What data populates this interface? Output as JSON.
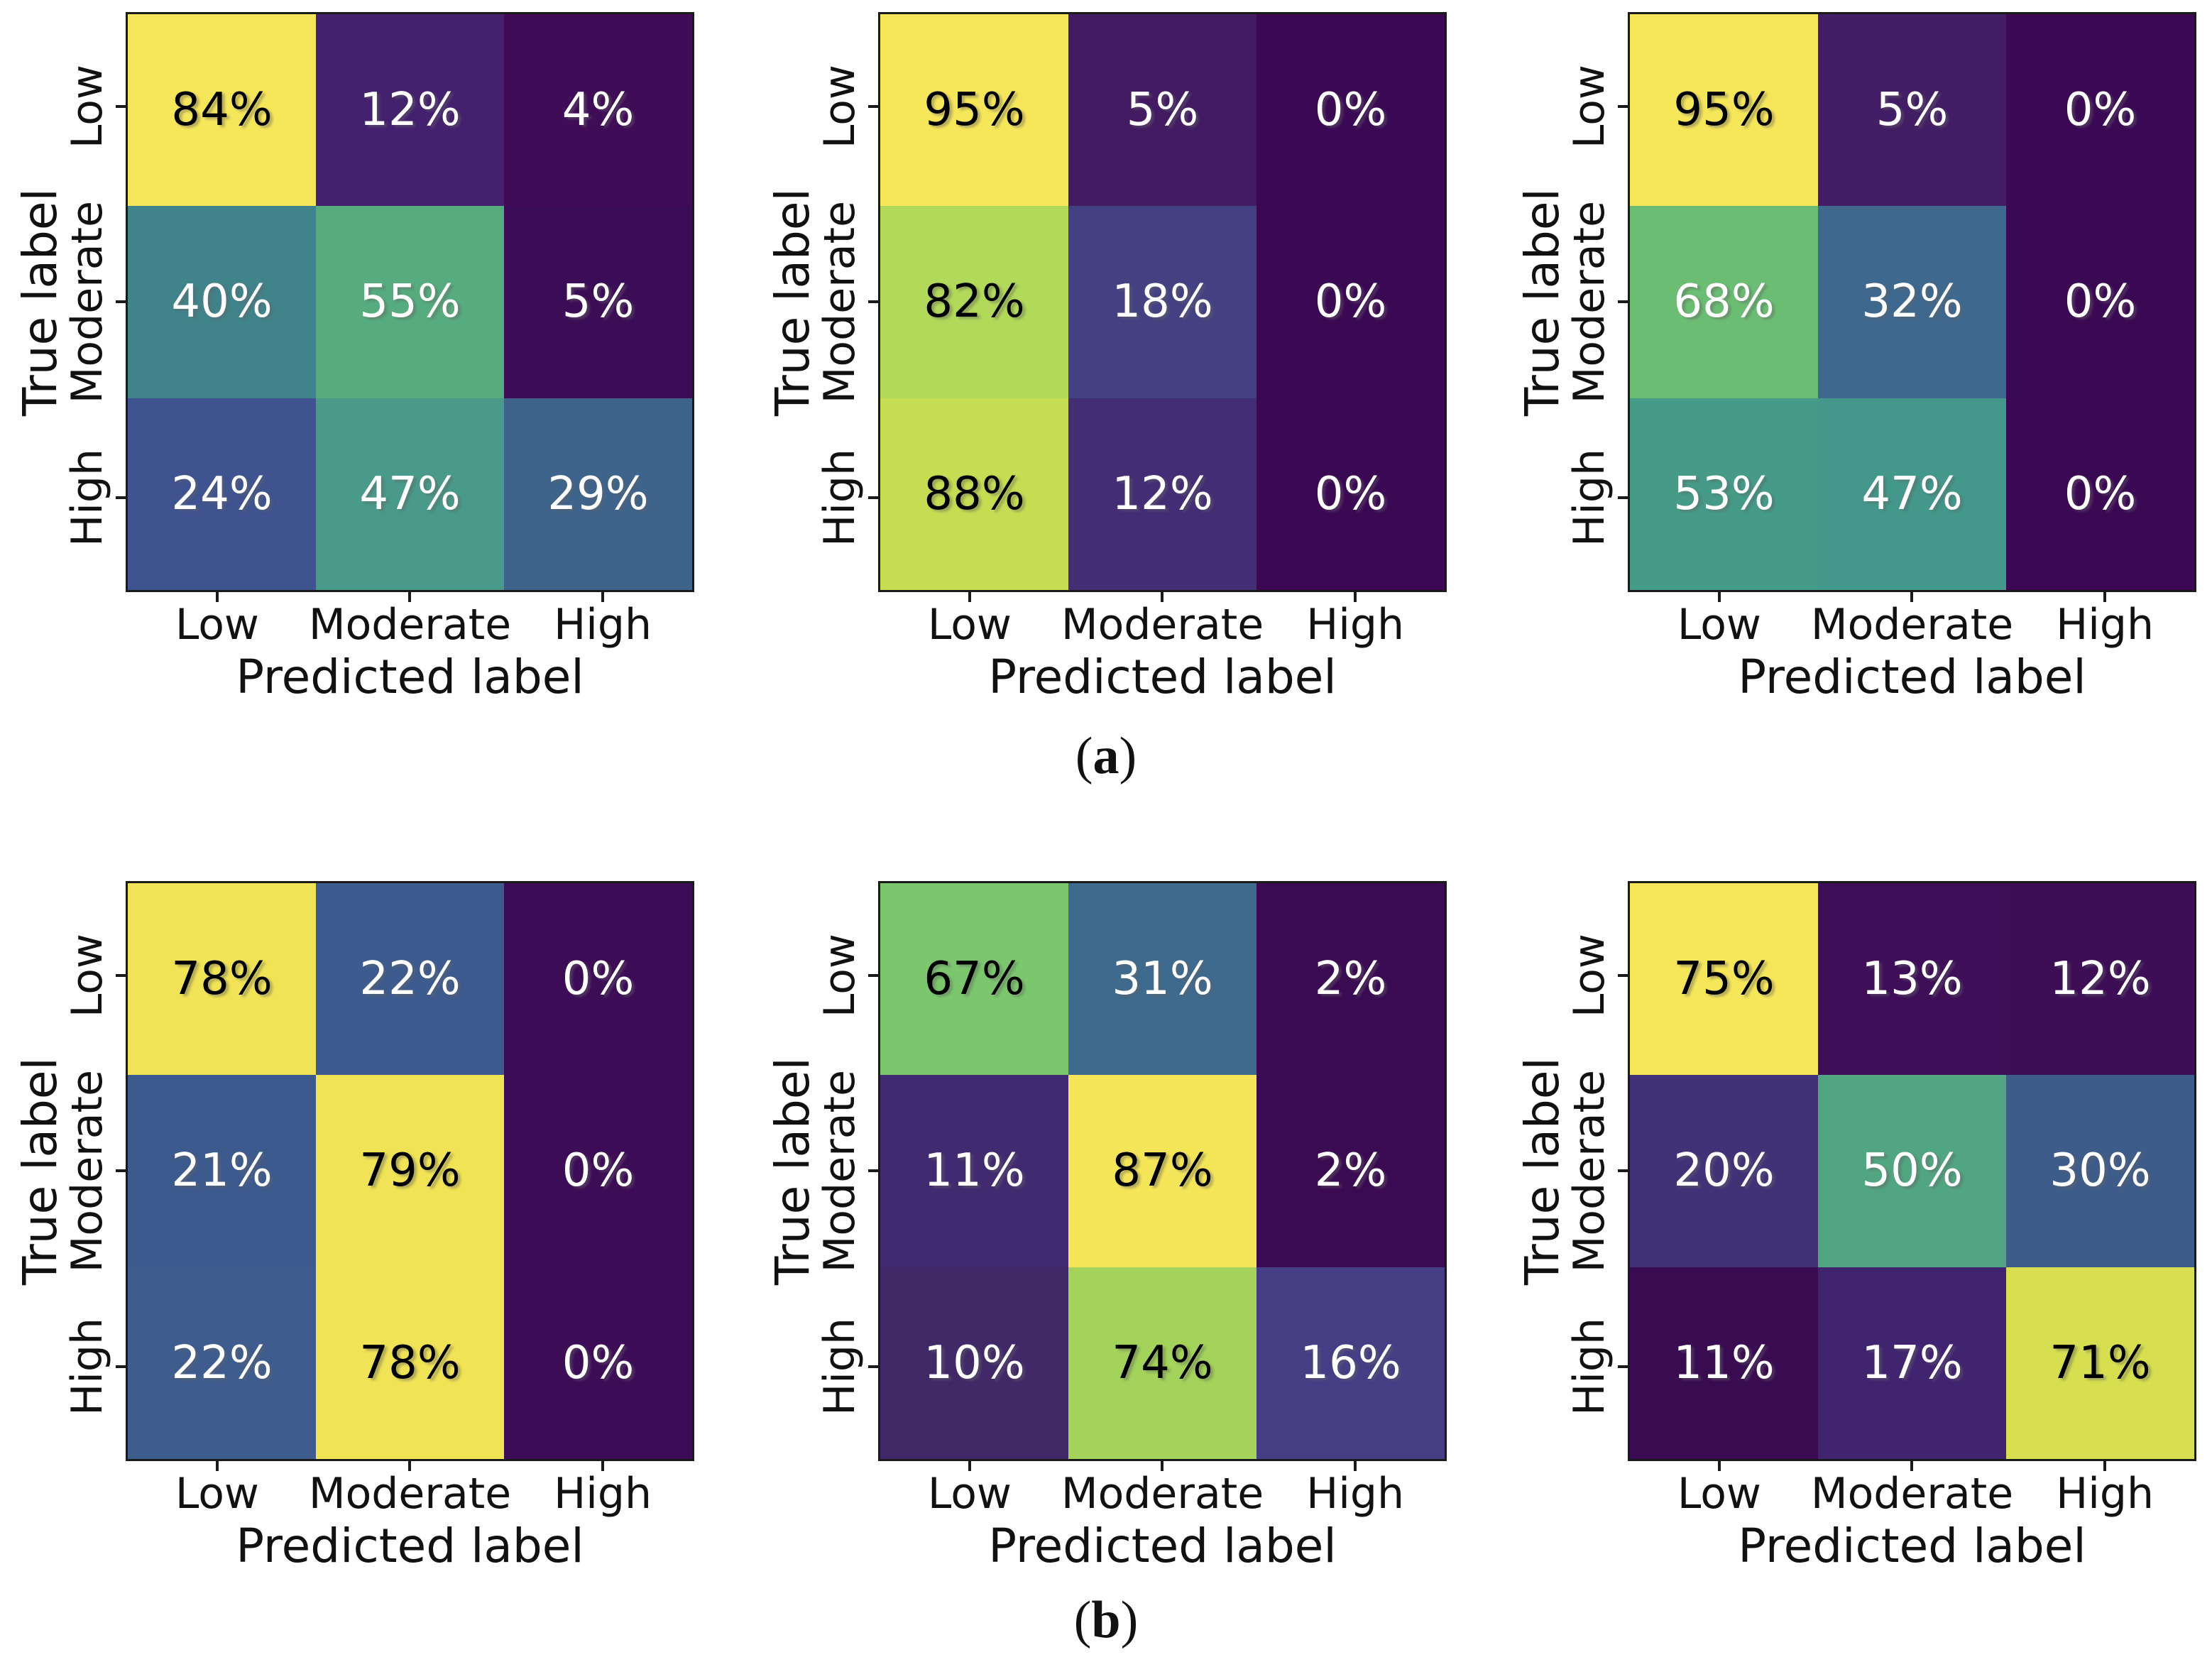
{
  "axes": {
    "ylabel": "True label",
    "xlabel": "Predicted label",
    "row_labels": [
      "Low",
      "Moderate",
      "High"
    ],
    "col_labels": [
      "Low",
      "Moderate",
      "High"
    ]
  },
  "captions": [
    {
      "open": "(",
      "letter": "a",
      "close": ")"
    },
    {
      "open": "(",
      "letter": "b",
      "close": ")"
    }
  ],
  "colors": {
    "background": "#ffffff",
    "spine": "#1a1a1a",
    "label_text": "#111111",
    "colormap": "viridis"
  },
  "chart_data": [
    {
      "id": "a-left",
      "type": "heatmap",
      "group": "a",
      "position": "top-left",
      "rows": [
        "Low",
        "Moderate",
        "High"
      ],
      "cols": [
        "Low",
        "Moderate",
        "High"
      ],
      "unit": "%",
      "values": [
        [
          84,
          12,
          4
        ],
        [
          40,
          55,
          5
        ],
        [
          24,
          47,
          29
        ]
      ],
      "cell_bg": [
        [
          "#f6e65a",
          "#44216e",
          "#400c57"
        ],
        [
          "#41838a",
          "#57ac7f",
          "#3c0d57"
        ],
        [
          "#3e538f",
          "#499a8a",
          "#3e648c"
        ]
      ],
      "cell_fg": [
        [
          "#000000",
          "#ffffff",
          "#ffffff"
        ],
        [
          "#ffffff",
          "#ffffff",
          "#ffffff"
        ],
        [
          "#ffffff",
          "#ffffff",
          "#ffffff"
        ]
      ]
    },
    {
      "id": "a-middle",
      "type": "heatmap",
      "group": "a",
      "position": "top-middle",
      "rows": [
        "Low",
        "Moderate",
        "High"
      ],
      "cols": [
        "Low",
        "Moderate",
        "High"
      ],
      "unit": "%",
      "values": [
        [
          95,
          5,
          0
        ],
        [
          82,
          18,
          0
        ],
        [
          88,
          12,
          0
        ]
      ],
      "cell_bg": [
        [
          "#f6e65a",
          "#421b63",
          "#3b0954"
        ],
        [
          "#b2d959",
          "#444183",
          "#3b0954"
        ],
        [
          "#c6dc52",
          "#432d74",
          "#3b0954"
        ]
      ],
      "cell_fg": [
        [
          "#000000",
          "#ffffff",
          "#ffffff"
        ],
        [
          "#000000",
          "#ffffff",
          "#ffffff"
        ],
        [
          "#000000",
          "#ffffff",
          "#ffffff"
        ]
      ]
    },
    {
      "id": "a-right",
      "type": "heatmap",
      "group": "a",
      "position": "top-right",
      "rows": [
        "Low",
        "Moderate",
        "High"
      ],
      "cols": [
        "Low",
        "Moderate",
        "High"
      ],
      "unit": "%",
      "values": [
        [
          95,
          5,
          0
        ],
        [
          68,
          32,
          0
        ],
        [
          53,
          47,
          0
        ]
      ],
      "cell_bg": [
        [
          "#f6e65a",
          "#431d65",
          "#3b0954"
        ],
        [
          "#6cbd74",
          "#3f688e",
          "#3b0954"
        ],
        [
          "#459a88",
          "#43988b",
          "#3b0954"
        ]
      ],
      "cell_fg": [
        [
          "#000000",
          "#ffffff",
          "#ffffff"
        ],
        [
          "#ffffff",
          "#ffffff",
          "#ffffff"
        ],
        [
          "#ffffff",
          "#ffffff",
          "#ffffff"
        ]
      ]
    },
    {
      "id": "b-left",
      "type": "heatmap",
      "group": "b",
      "position": "bottom-left",
      "rows": [
        "Low",
        "Moderate",
        "High"
      ],
      "cols": [
        "Low",
        "Moderate",
        "High"
      ],
      "unit": "%",
      "values": [
        [
          78,
          22,
          0
        ],
        [
          21,
          79,
          0
        ],
        [
          22,
          78,
          0
        ]
      ],
      "cell_bg": [
        [
          "#f0e355",
          "#3d5b8e",
          "#3d0c57"
        ],
        [
          "#3d5a8e",
          "#f0e355",
          "#3d0c57"
        ],
        [
          "#3e5c8e",
          "#f0e355",
          "#3d0c57"
        ]
      ],
      "cell_fg": [
        [
          "#000000",
          "#ffffff",
          "#ffffff"
        ],
        [
          "#ffffff",
          "#000000",
          "#ffffff"
        ],
        [
          "#ffffff",
          "#000000",
          "#ffffff"
        ]
      ]
    },
    {
      "id": "b-middle",
      "type": "heatmap",
      "group": "b",
      "position": "bottom-middle",
      "rows": [
        "Low",
        "Moderate",
        "High"
      ],
      "cols": [
        "Low",
        "Moderate",
        "High"
      ],
      "unit": "%",
      "values": [
        [
          67,
          31,
          2
        ],
        [
          11,
          87,
          2
        ],
        [
          10,
          74,
          16
        ]
      ],
      "cell_bg": [
        [
          "#7cc76e",
          "#3e6a8e",
          "#3a0a52"
        ],
        [
          "#422a70",
          "#f5e659",
          "#3a0a52"
        ],
        [
          "#412968",
          "#a3d35a",
          "#453e85"
        ]
      ],
      "cell_fg": [
        [
          "#000000",
          "#ffffff",
          "#ffffff"
        ],
        [
          "#ffffff",
          "#000000",
          "#ffffff"
        ],
        [
          "#ffffff",
          "#000000",
          "#ffffff"
        ]
      ]
    },
    {
      "id": "b-right",
      "type": "heatmap",
      "group": "b",
      "position": "bottom-right",
      "rows": [
        "Low",
        "Moderate",
        "High"
      ],
      "cols": [
        "Low",
        "Moderate",
        "High"
      ],
      "unit": "%",
      "values": [
        [
          75,
          13,
          12
        ],
        [
          20,
          50,
          30
        ],
        [
          11,
          17,
          71
        ]
      ],
      "cell_bg": [
        [
          "#f6e65a",
          "#3e0f58",
          "#3d0e56"
        ],
        [
          "#413278",
          "#52a581",
          "#3e5c8a"
        ],
        [
          "#390c52",
          "#412470",
          "#d7df50"
        ]
      ],
      "cell_fg": [
        [
          "#000000",
          "#ffffff",
          "#ffffff"
        ],
        [
          "#ffffff",
          "#ffffff",
          "#ffffff"
        ],
        [
          "#ffffff",
          "#ffffff",
          "#000000"
        ]
      ]
    }
  ]
}
